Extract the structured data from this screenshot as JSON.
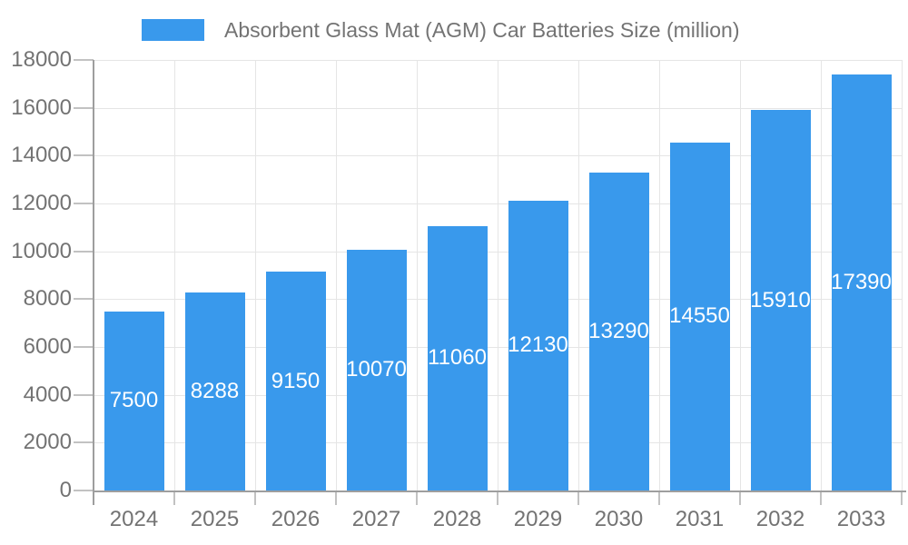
{
  "chart_data": {
    "type": "bar",
    "title": "Absorbent Glass Mat (AGM) Car Batteries Size (million)",
    "legend_position": "top",
    "categories": [
      "2024",
      "2025",
      "2026",
      "2027",
      "2028",
      "2029",
      "2030",
      "2031",
      "2032",
      "2033"
    ],
    "series": [
      {
        "name": "Absorbent Glass Mat (AGM) Car Batteries Size (million)",
        "color": "#3999EC",
        "values": [
          7500,
          8288,
          9150,
          10070,
          11060,
          12130,
          13290,
          14550,
          15910,
          17390
        ]
      }
    ],
    "value_labels": {
      "visible": true,
      "position": "center",
      "color": "#FFFFFF"
    },
    "xlabel": "",
    "ylabel": "",
    "ylim": [
      0,
      18000
    ],
    "yticks": [
      0,
      2000,
      4000,
      6000,
      8000,
      10000,
      12000,
      14000,
      16000,
      18000
    ],
    "grid": {
      "horizontal": true,
      "vertical": true
    },
    "colors": {
      "background": "#FFFFFF",
      "grid": "#E5E5E5",
      "axis": "#9E9E9E",
      "tick": "#C2C2C2",
      "axis_text": "#737373",
      "legend_text": "#737373"
    }
  }
}
